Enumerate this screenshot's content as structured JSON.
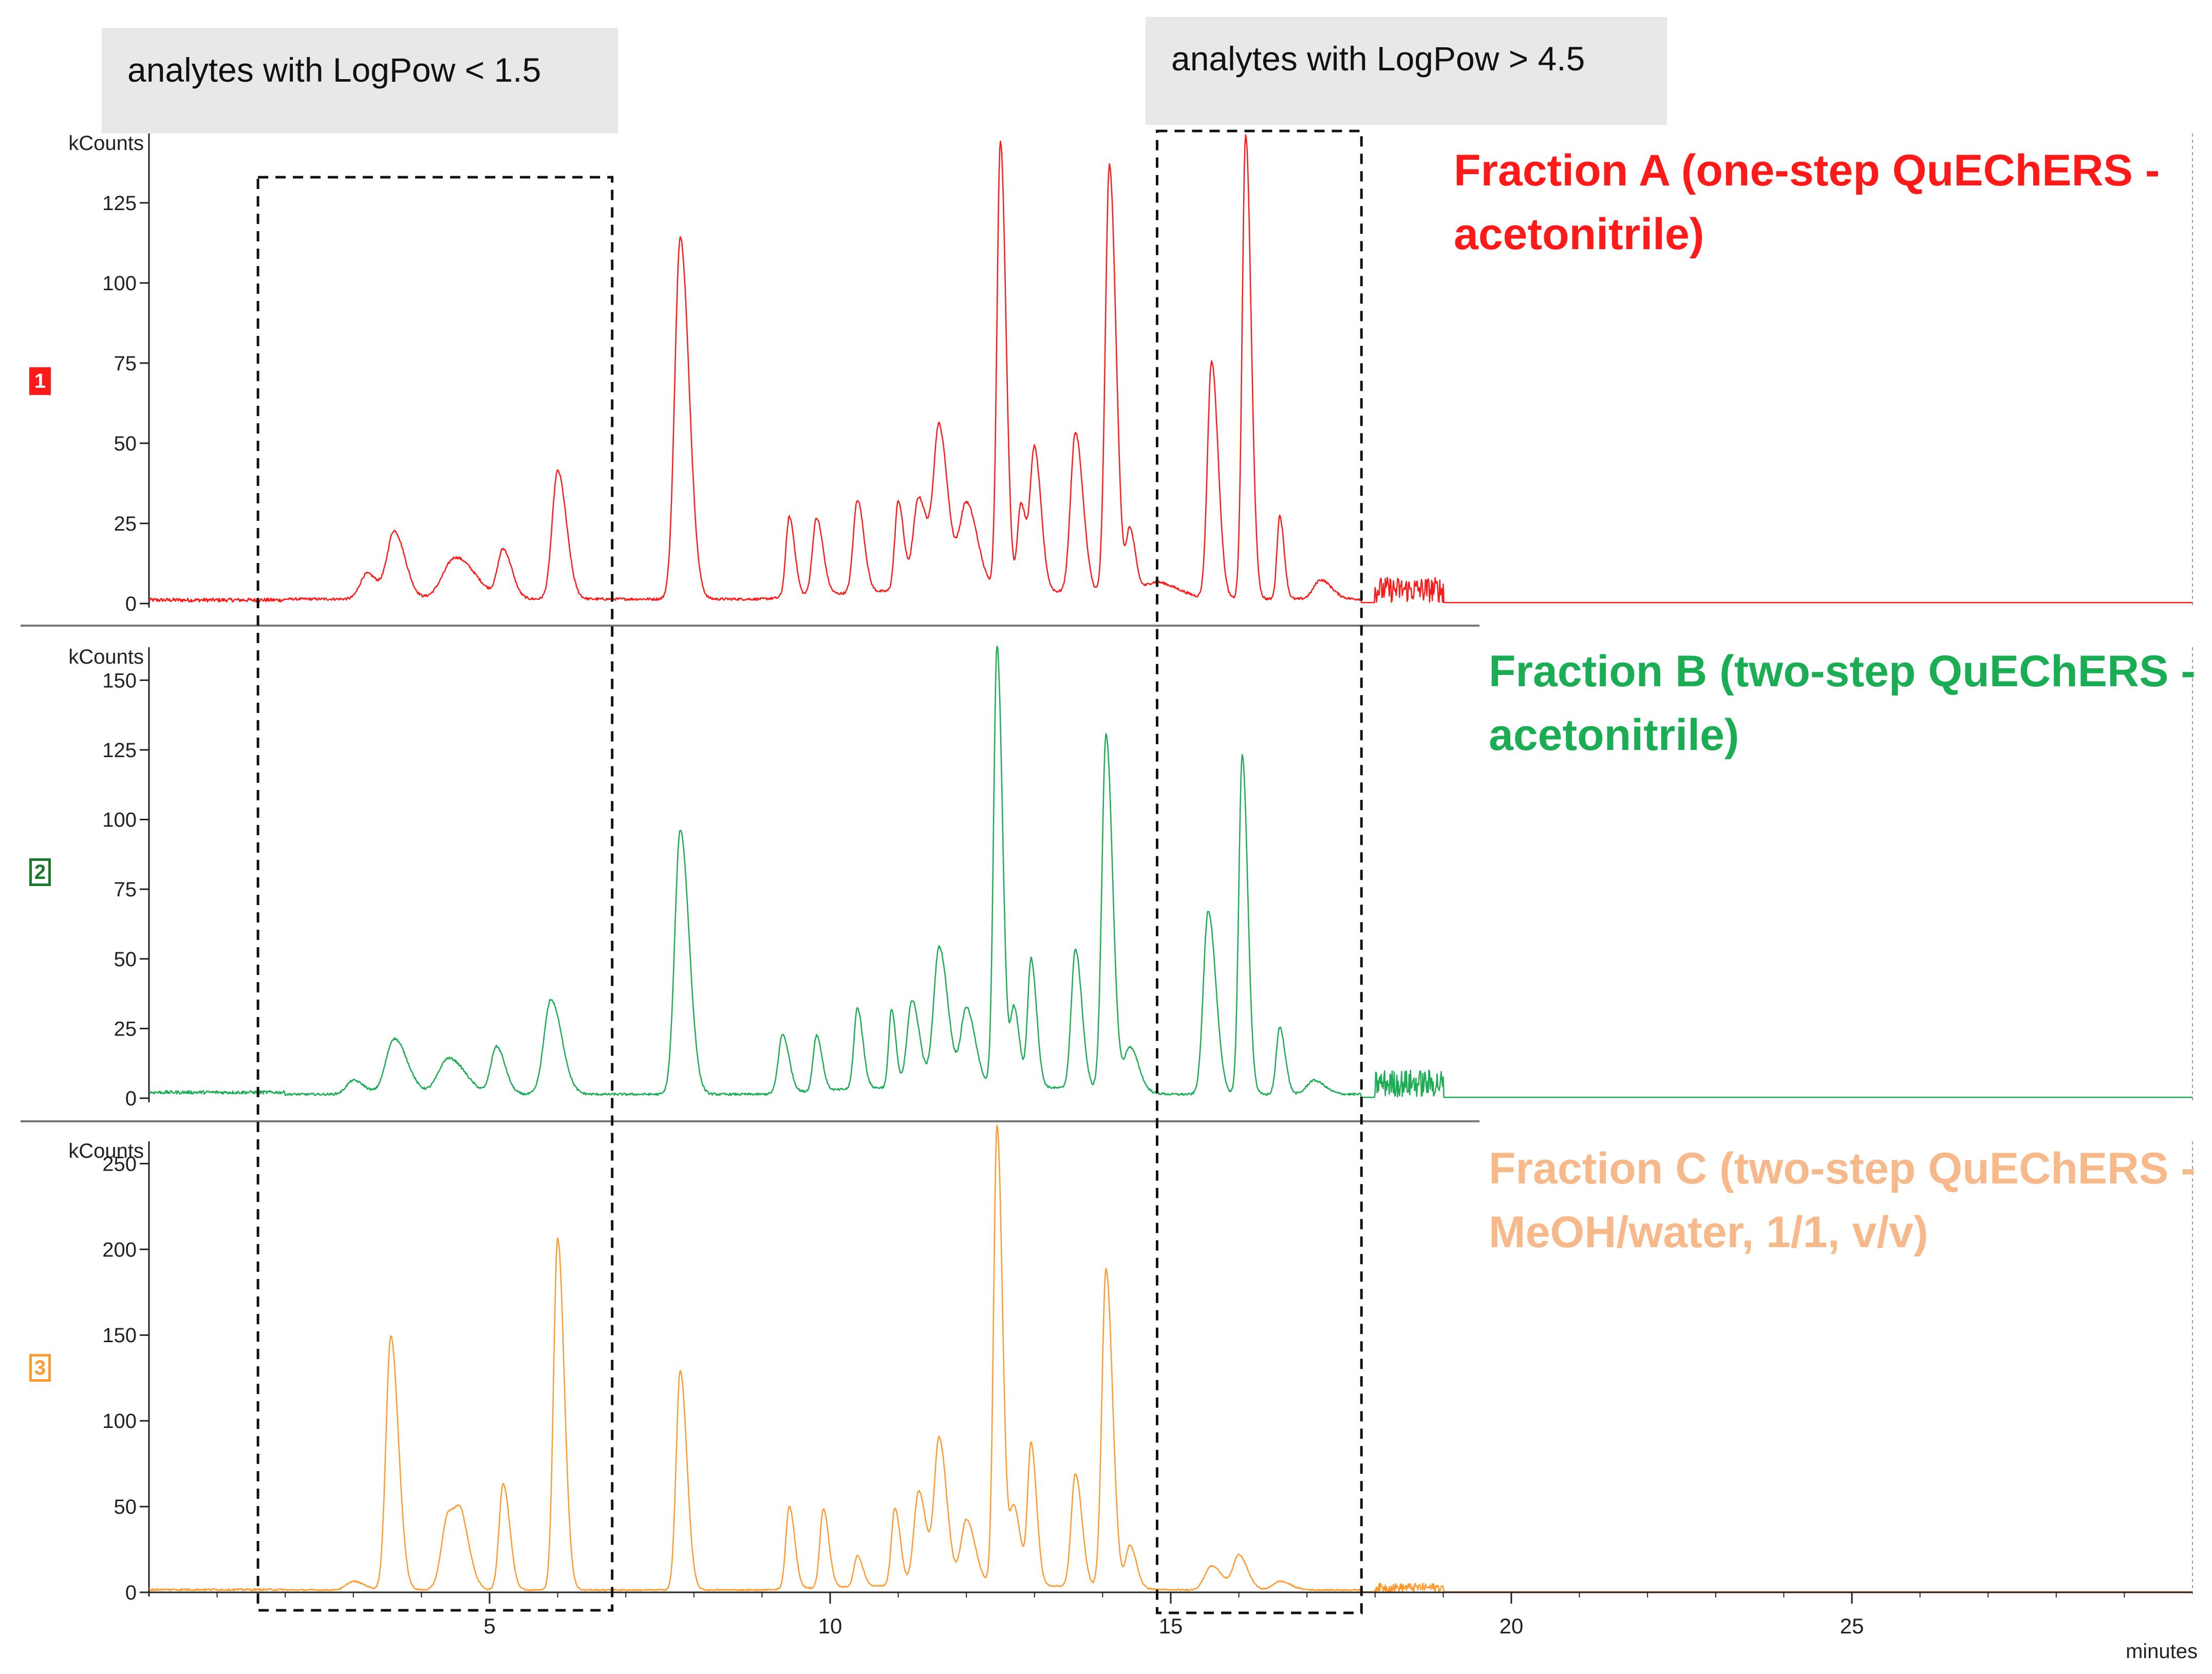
{
  "chart_data": {
    "type": "line",
    "title": "",
    "xlabel": "minutes",
    "xlim": [
      0,
      30
    ],
    "x_ticks": [
      5,
      10,
      15,
      20,
      25
    ],
    "annotations": [
      {
        "text": "analytes with LogPow < 1.5",
        "x_range": [
          1.6,
          6.8
        ]
      },
      {
        "text": "analytes with LogPow > 4.5",
        "x_range": [
          14.8,
          17.8
        ]
      }
    ],
    "series": [
      {
        "index": "1",
        "name": "Fraction A (one-step QuEChERS - acetonitrile)",
        "name_lines": [
          "Fraction A (one-step QuEChERS -",
          "acetonitrile)"
        ],
        "color": "#ff1a1a",
        "badge_style": "filled",
        "ylabel": "kCounts",
        "ylim": [
          0,
          145
        ],
        "y_ticks": [
          0,
          25,
          50,
          75,
          100,
          125
        ],
        "baseline_segments": [
          [
            0,
            2,
            0.5
          ],
          [
            2,
            3,
            1
          ],
          [
            17.8,
            30,
            0.5
          ]
        ],
        "noise_range": [
          18,
          19
        ],
        "noise_level": 8,
        "peaks": [
          [
            3.2,
            8,
            0.1
          ],
          [
            3.6,
            21,
            0.1
          ],
          [
            4.5,
            13,
            0.18
          ],
          [
            5.2,
            15,
            0.08
          ],
          [
            6.0,
            40,
            0.08
          ],
          [
            7.8,
            113,
            0.08
          ],
          [
            9.4,
            25,
            0.05
          ],
          [
            9.8,
            24,
            0.06
          ],
          [
            10.4,
            29,
            0.06
          ],
          [
            11.0,
            28,
            0.05
          ],
          [
            11.3,
            29,
            0.08
          ],
          [
            11.6,
            50,
            0.08
          ],
          [
            12.0,
            27,
            0.1
          ],
          [
            12.5,
            140,
            0.05
          ],
          [
            12.8,
            27,
            0.05
          ],
          [
            13.0,
            44,
            0.06
          ],
          [
            13.6,
            50,
            0.07
          ],
          [
            14.1,
            134,
            0.06
          ],
          [
            14.4,
            20,
            0.05
          ],
          [
            14.8,
            5,
            0.2
          ],
          [
            15.6,
            74,
            0.06
          ],
          [
            16.1,
            145,
            0.05
          ],
          [
            16.6,
            26,
            0.04
          ],
          [
            17.2,
            6,
            0.1
          ]
        ]
      },
      {
        "index": "2",
        "name": "Fraction B (two-step QuEChERS - acetonitrile)",
        "name_lines": [
          "Fraction B (two-step QuEChERS -",
          "acetonitrile)"
        ],
        "color": "#1aad54",
        "badge_color": "#1a7a2a",
        "badge_style": "outline",
        "ylabel": "kCounts",
        "ylim": [
          0,
          160
        ],
        "y_ticks": [
          0,
          25,
          50,
          75,
          100,
          125,
          150
        ],
        "baseline_segments": [
          [
            0,
            2,
            1.5
          ],
          [
            2,
            3,
            1
          ],
          [
            17.8,
            30,
            0.5
          ]
        ],
        "noise_range": [
          18,
          19
        ],
        "noise_level": 10,
        "peaks": [
          [
            3.0,
            5,
            0.1
          ],
          [
            3.6,
            20,
            0.12
          ],
          [
            4.4,
            13,
            0.15
          ],
          [
            5.1,
            17,
            0.08
          ],
          [
            5.9,
            34,
            0.1
          ],
          [
            7.8,
            95,
            0.08
          ],
          [
            9.3,
            21,
            0.06
          ],
          [
            9.8,
            20,
            0.05
          ],
          [
            10.4,
            29,
            0.05
          ],
          [
            10.9,
            28,
            0.04
          ],
          [
            11.2,
            31,
            0.07
          ],
          [
            11.6,
            50,
            0.08
          ],
          [
            12.0,
            28,
            0.08
          ],
          [
            12.45,
            158,
            0.05
          ],
          [
            12.7,
            28,
            0.05
          ],
          [
            12.95,
            46,
            0.05
          ],
          [
            13.6,
            50,
            0.06
          ],
          [
            14.05,
            128,
            0.06
          ],
          [
            14.4,
            16,
            0.08
          ],
          [
            15.55,
            66,
            0.07
          ],
          [
            16.05,
            122,
            0.05
          ],
          [
            16.6,
            24,
            0.05
          ],
          [
            17.1,
            5,
            0.1
          ]
        ]
      },
      {
        "index": "3",
        "name": "Fraction C (two-step QuEChERS - MeOH/water, 1/1, v/v)",
        "name_lines": [
          "Fraction C (two-step QuEChERS -",
          "MeOH/water, 1/1, v/v)"
        ],
        "color": "#ff9a2e",
        "title_color": "#f7b98a",
        "badge_style": "outline",
        "ylabel": "kCounts",
        "ylim": [
          0,
          260
        ],
        "y_ticks": [
          0,
          50,
          100,
          150,
          200,
          250
        ],
        "baseline_segments": [
          [
            0,
            2,
            1
          ],
          [
            2,
            3,
            1
          ],
          [
            17.8,
            30,
            0.5
          ]
        ],
        "noise_range": [
          18,
          19
        ],
        "noise_level": 5,
        "peaks": [
          [
            3.0,
            5,
            0.1
          ],
          [
            3.55,
            148,
            0.07
          ],
          [
            4.4,
            45,
            0.1
          ],
          [
            4.6,
            25,
            0.08
          ],
          [
            5.2,
            62,
            0.06
          ],
          [
            6.0,
            205,
            0.06
          ],
          [
            7.8,
            128,
            0.06
          ],
          [
            9.4,
            48,
            0.05
          ],
          [
            9.9,
            46,
            0.05
          ],
          [
            10.4,
            18,
            0.05
          ],
          [
            10.95,
            45,
            0.05
          ],
          [
            11.3,
            55,
            0.07
          ],
          [
            11.6,
            85,
            0.07
          ],
          [
            12.0,
            38,
            0.08
          ],
          [
            12.45,
            268,
            0.05
          ],
          [
            12.7,
            45,
            0.06
          ],
          [
            12.95,
            82,
            0.05
          ],
          [
            13.6,
            66,
            0.06
          ],
          [
            14.05,
            186,
            0.06
          ],
          [
            14.4,
            25,
            0.06
          ],
          [
            15.6,
            14,
            0.1
          ],
          [
            16.0,
            20,
            0.08
          ],
          [
            16.6,
            5,
            0.1
          ]
        ]
      }
    ]
  }
}
